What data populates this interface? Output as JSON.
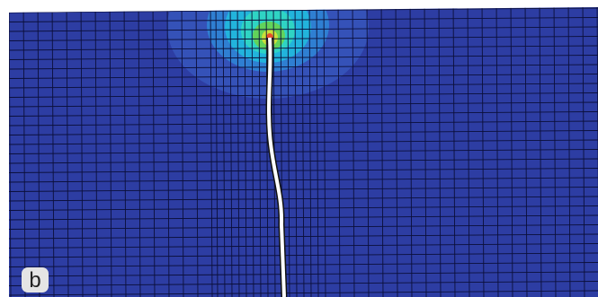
{
  "panel_label": "b"
}
